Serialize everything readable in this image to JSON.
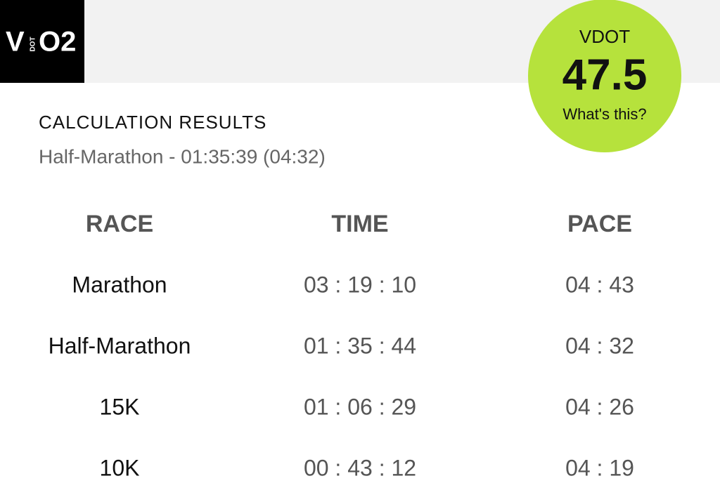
{
  "logo": {
    "v": "V",
    "dot": "DOT",
    "o2": "O2"
  },
  "badge": {
    "label": "VDOT",
    "value": "47.5",
    "link": "What's this?"
  },
  "results": {
    "heading": "CALCULATION RESULTS",
    "summary": "Half-Marathon - 01:35:39 (04:32)"
  },
  "table": {
    "columns": [
      "RACE",
      "TIME",
      "PACE"
    ],
    "rows": [
      [
        "Marathon",
        "03 : 19 : 10",
        "04 : 43"
      ],
      [
        "Half-Marathon",
        "01 : 35 : 44",
        "04 : 32"
      ],
      [
        "15K",
        "01 : 06 : 29",
        "04 : 26"
      ],
      [
        "10K",
        "00 : 43 : 12",
        "04 : 19"
      ]
    ]
  }
}
